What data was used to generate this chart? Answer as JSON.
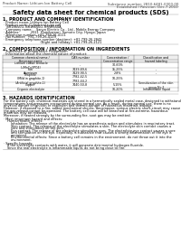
{
  "bg_color": "#ffffff",
  "header_left": "Product Name: Lithium Ion Battery Cell",
  "header_right_line1": "Substance number: 2810-6481-0000-00",
  "header_right_line2": "Established / Revision: Dec.7.2010",
  "title": "Safety data sheet for chemical products (SDS)",
  "section1_title": "1. PRODUCT AND COMPANY IDENTIFICATION",
  "section1_lines": [
    "· Product name: Lithium Ion Battery Cell",
    "· Product code: Cylindrical-type cell",
    "   BR18650U, BR18650U, BR18650A",
    "· Company name:    Sanyo Electric Co., Ltd., Mobile Energy Company",
    "· Address:           2021  Kamikamari, Sumoto City, Hyogo, Japan",
    "· Telephone number: +81-799-26-4111",
    "· Fax number:  +81-799-26-4129",
    "· Emergency telephone number (daytime): +81-799-26-2842",
    "                                    (Night and holiday): +81-799-26-2121"
  ],
  "section2_title": "2. COMPOSITION / INFORMATION ON INGREDIENTS",
  "section2_intro": "· Substance or preparation: Preparation",
  "section2_subtitle": "· Information about the chemical nature of product:",
  "table_col_header1": "Common chemical name /",
  "table_col_header1b": "Beverage name",
  "table_col_header2": "CAS number",
  "table_col_header3a": "Concentration /",
  "table_col_header3b": "Concentration range",
  "table_col_header4": "Classification and",
  "table_col_header4b": "hazard labeling",
  "table_rows": [
    [
      "Lithium cobalt tentacle\n(LiMnCo3PO4)",
      "-",
      "30-60%",
      ""
    ],
    [
      "Iron",
      "7439-89-6",
      "15-25%",
      "-"
    ],
    [
      "Aluminum",
      "7429-90-5",
      "2-8%",
      "-"
    ],
    [
      "Graphite\n(Mild in graphite-1)\n(Artificial graphite-1)",
      "7782-42-5\n7782-44-2",
      "10-25%",
      ""
    ],
    [
      "Copper",
      "7440-50-8",
      "5-15%",
      "Sensitization of the skin\ngroup No.2"
    ],
    [
      "Organic electrolyte",
      "-",
      "10-20%",
      "Inflammable liquid"
    ]
  ],
  "section3_title": "3. HAZARDS IDENTIFICATION",
  "section3_para1": [
    "For the battery cell, chemical materials are stored in a hermetically sealed metal case, designed to withstand",
    "temperatures and pressures encountered during normal use. As a result, during normal use, there is no",
    "physical danger of ignition or explosion and thermo-danger of hazardous materials leakage.",
    "However, if exposed to a fire, added mechanical shocks, decompose, serious electric short-circuit may cause",
    "the gas release cannot be operated. The battery cell case will be breached at fire-extreme, hazardous",
    "materials may be released.",
    "Moreover, if heated strongly by the surrounding fire, soot gas may be emitted."
  ],
  "section3_bullet1": "· Most important hazard and effects:",
  "section3_sub1": "Human health effects:",
  "section3_sub1_lines": [
    "Inhalation: The release of the electrolyte has an anesthesia action and stimulates in respiratory tract.",
    "Skin contact: The release of the electrolyte stimulates a skin. The electrolyte skin contact causes a",
    "sore and stimulation on the skin.",
    "Eye contact: The release of the electrolyte stimulates eyes. The electrolyte eye contact causes a sore",
    "and stimulation on the eye. Especially, a substance that causes a strong inflammation of the eye is",
    "contained.",
    "Environmental effects: Since a battery cell remains in the environment, do not throw out it into the",
    "environment."
  ],
  "section3_bullet2": "· Specific hazards:",
  "section3_specific": [
    "If the electrolyte contacts with water, it will generate detrimental hydrogen fluoride.",
    "Since the real electrolyte is inflammable liquid, do not bring close to fire."
  ]
}
